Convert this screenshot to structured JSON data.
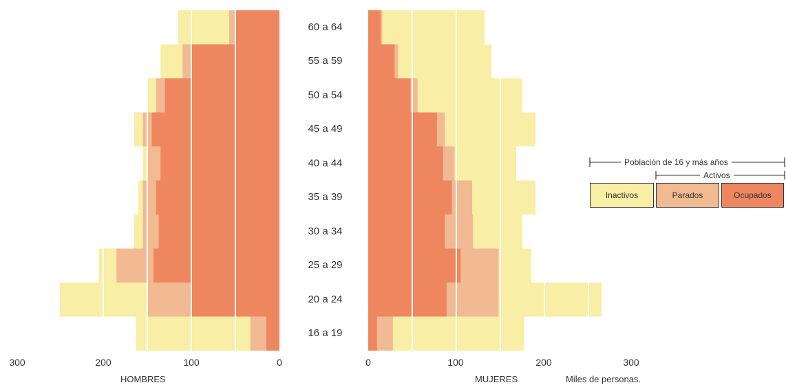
{
  "chart_data": {
    "type": "bar",
    "orientation": "population-pyramid",
    "categories": [
      "60 a 64",
      "55 a 59",
      "50 a 54",
      "45 a 49",
      "40 a 44",
      "35 a 39",
      "30 a 34",
      "25 a 29",
      "20 a 24",
      "16 a 19"
    ],
    "series_order": [
      "Ocupados",
      "Parados",
      "Inactivos"
    ],
    "hombres": {
      "label": "HOMBRES",
      "ocupados": [
        50,
        100,
        130,
        145,
        135,
        140,
        137,
        143,
        100,
        15
      ],
      "parados": [
        57,
        110,
        140,
        155,
        150,
        155,
        155,
        185,
        150,
        33
      ],
      "inactivos": [
        115,
        135,
        150,
        165,
        155,
        160,
        165,
        205,
        250,
        163
      ]
    },
    "mujeres": {
      "label": "MUJERES",
      "ocupados": [
        14,
        30,
        48,
        78,
        85,
        95,
        87,
        105,
        89,
        10
      ],
      "parados": [
        16,
        34,
        56,
        87,
        98,
        118,
        119,
        148,
        148,
        28
      ],
      "inactivos": [
        132,
        140,
        175,
        190,
        168,
        190,
        175,
        185,
        265,
        177
      ]
    },
    "axis": {
      "hombres_ticks": [
        "300",
        "200",
        "100",
        "0"
      ],
      "mujeres_ticks": [
        "0",
        "100",
        "200",
        "300"
      ],
      "max": 300,
      "unit_label": "Miles de personas."
    },
    "gridlines": [
      50,
      100,
      150,
      200,
      250
    ],
    "legend": {
      "population_label": "Población de 16 y más años",
      "activos_label": "Activos",
      "items": [
        {
          "label": "Inactivos",
          "color": "#f8eea5"
        },
        {
          "label": "Parados",
          "color": "#f2ba92"
        },
        {
          "label": "Ocupados",
          "color": "#ee875f"
        }
      ]
    }
  },
  "colors": {
    "inactivos": "#f8eea5",
    "parados": "#f2ba92",
    "ocupados": "#ee875f",
    "grid": "#ffffff"
  }
}
